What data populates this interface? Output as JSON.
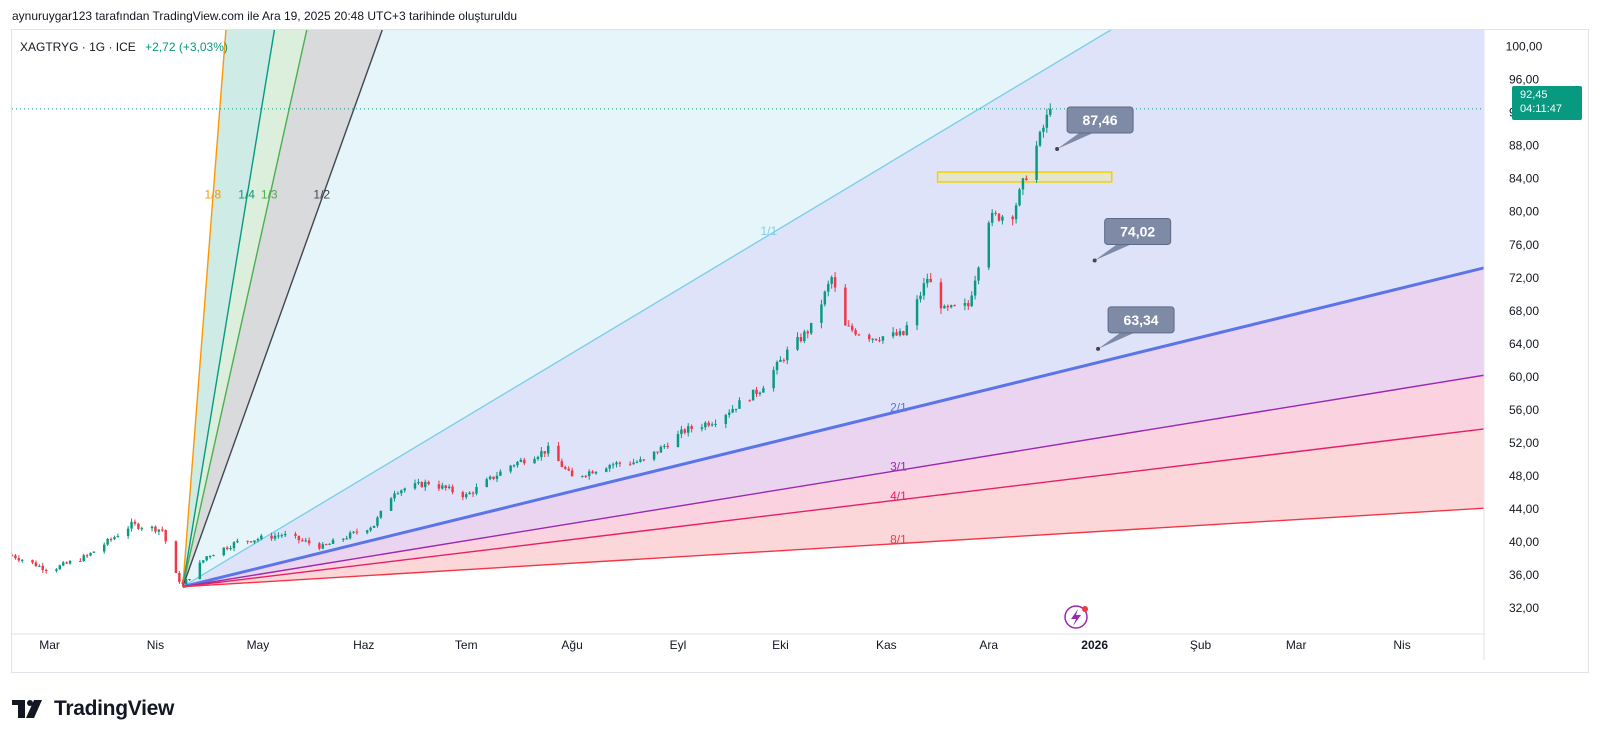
{
  "header": {
    "title": "aynuruygar123 tarafından TradingView.com ile Ara 19, 2025 20:48 UTC+3 tarihinde oluşturuldu"
  },
  "symbol": {
    "name": "XAGTRYG · 1G · ICE",
    "change": "+2,72 (+3,03%)"
  },
  "price_tag": {
    "price": "92,45",
    "countdown": "04:11:47"
  },
  "brand": {
    "wordmark": "TradingView"
  },
  "colors": {
    "up": "#089981",
    "down": "#f23645",
    "fan_1_8": "#ff9800",
    "fan_1_4": "#089981",
    "fan_1_3": "#4caf50",
    "fan_1_2": "#434651",
    "fan_1_1": "#7ecfe8",
    "fan_2_1": "#5b74e8",
    "fan_3_1": "#9c27b0",
    "fan_4_1": "#e91e63",
    "fan_8_1": "#f23645"
  },
  "chart_data": {
    "type": "candlestick",
    "title": "XAGTRYG · 1G · ICE",
    "y_ticks": [
      "32,00",
      "36,00",
      "40,00",
      "44,00",
      "48,00",
      "52,00",
      "56,00",
      "60,00",
      "64,00",
      "68,00",
      "72,00",
      "76,00",
      "80,00",
      "84,00",
      "88,00",
      "92,00",
      "96,00",
      "100,00"
    ],
    "ylim": [
      29.6,
      102
    ],
    "x_ticks": [
      {
        "label": "Mar",
        "date": "2025-03-01",
        "bold": false
      },
      {
        "label": "Nis",
        "date": "2025-04-01",
        "bold": false
      },
      {
        "label": "May",
        "date": "2025-05-01",
        "bold": false
      },
      {
        "label": "Haz",
        "date": "2025-06-01",
        "bold": false
      },
      {
        "label": "Tem",
        "date": "2025-07-01",
        "bold": false
      },
      {
        "label": "Ağu",
        "date": "2025-08-01",
        "bold": false
      },
      {
        "label": "Eyl",
        "date": "2025-09-01",
        "bold": false
      },
      {
        "label": "Eki",
        "date": "2025-10-01",
        "bold": false
      },
      {
        "label": "Kas",
        "date": "2025-11-01",
        "bold": false
      },
      {
        "label": "Ara",
        "date": "2025-12-01",
        "bold": false
      },
      {
        "label": "2026",
        "date": "2026-01-01",
        "bold": true
      },
      {
        "label": "Şub",
        "date": "2026-02-01",
        "bold": false
      },
      {
        "label": "Mar",
        "date": "2026-03-01",
        "bold": false
      },
      {
        "label": "Nis",
        "date": "2026-04-01",
        "bold": false
      }
    ],
    "xlim": [
      "2025-02-18",
      "2026-04-25"
    ],
    "last_price": 92.45,
    "anchors": [
      {
        "date": "2025-02-18",
        "price": 38.4
      },
      {
        "date": "2025-03-01",
        "price": 36.6
      },
      {
        "date": "2025-03-12",
        "price": 38.3
      },
      {
        "date": "2025-03-25",
        "price": 42.1
      },
      {
        "date": "2025-04-03",
        "price": 41.5
      },
      {
        "date": "2025-04-07",
        "price": 36.0
      },
      {
        "date": "2025-04-09",
        "price": 34.8
      },
      {
        "date": "2025-04-16",
        "price": 38.3
      },
      {
        "date": "2025-04-25",
        "price": 40.0
      },
      {
        "date": "2025-05-08",
        "price": 40.9
      },
      {
        "date": "2025-05-20",
        "price": 39.4
      },
      {
        "date": "2025-06-04",
        "price": 42.1
      },
      {
        "date": "2025-06-10",
        "price": 46.2
      },
      {
        "date": "2025-06-20",
        "price": 47.2
      },
      {
        "date": "2025-07-01",
        "price": 45.6
      },
      {
        "date": "2025-07-14",
        "price": 49.3
      },
      {
        "date": "2025-07-25",
        "price": 51.2
      },
      {
        "date": "2025-08-01",
        "price": 47.8
      },
      {
        "date": "2025-08-12",
        "price": 49.4
      },
      {
        "date": "2025-08-22",
        "price": 49.8
      },
      {
        "date": "2025-09-03",
        "price": 53.5
      },
      {
        "date": "2025-09-12",
        "price": 54.8
      },
      {
        "date": "2025-09-25",
        "price": 58.5
      },
      {
        "date": "2025-10-03",
        "price": 63.0
      },
      {
        "date": "2025-10-10",
        "price": 66.0
      },
      {
        "date": "2025-10-16",
        "price": 72.0
      },
      {
        "date": "2025-10-20",
        "price": 66.0
      },
      {
        "date": "2025-10-28",
        "price": 64.8
      },
      {
        "date": "2025-11-06",
        "price": 65.1
      },
      {
        "date": "2025-11-13",
        "price": 72.0
      },
      {
        "date": "2025-11-18",
        "price": 68.0
      },
      {
        "date": "2025-11-25",
        "price": 68.6
      },
      {
        "date": "2025-12-01",
        "price": 79.2
      },
      {
        "date": "2025-12-08",
        "price": 79.8
      },
      {
        "date": "2025-12-12",
        "price": 84.5
      },
      {
        "date": "2025-12-16",
        "price": 89.0
      },
      {
        "date": "2025-12-19",
        "price": 92.45
      }
    ],
    "gann_fan": {
      "origin": {
        "date": "2025-04-09",
        "price": 34.6
      },
      "lines": [
        {
          "label": "1/8",
          "end": {
            "date": "2025-04-25",
            "price": 120.0
          }
        },
        {
          "label": "1/4",
          "end": {
            "date": "2025-05-13",
            "price": 120.0
          }
        },
        {
          "label": "1/3",
          "end": {
            "date": "2025-05-25",
            "price": 120.0
          }
        },
        {
          "label": "1/2",
          "end": {
            "date": "2025-06-22",
            "price": 120.0
          }
        },
        {
          "label": "1/1",
          "end": {
            "date": "2026-02-15",
            "price": 112.0
          }
        },
        {
          "label": "2/1",
          "end": {
            "date": "2026-04-25",
            "price": 73.2
          }
        },
        {
          "label": "3/1",
          "end": {
            "date": "2026-04-25",
            "price": 60.2
          }
        },
        {
          "label": "4/1",
          "end": {
            "date": "2026-04-25",
            "price": 53.7
          }
        },
        {
          "label": "8/1",
          "end": {
            "date": "2026-04-25",
            "price": 44.1
          }
        }
      ]
    },
    "annotations": [
      {
        "text": "87,46",
        "anchor": {
          "date": "2025-12-21",
          "price": 87.6
        }
      },
      {
        "text": "74,02",
        "anchor": {
          "date": "2026-01-01",
          "price": 74.1
        }
      },
      {
        "text": "63,34",
        "anchor": {
          "date": "2026-01-02",
          "price": 63.4
        }
      }
    ],
    "zone": {
      "from": "2025-11-16",
      "to": "2026-01-06",
      "low": 83.6,
      "high": 84.8
    }
  }
}
